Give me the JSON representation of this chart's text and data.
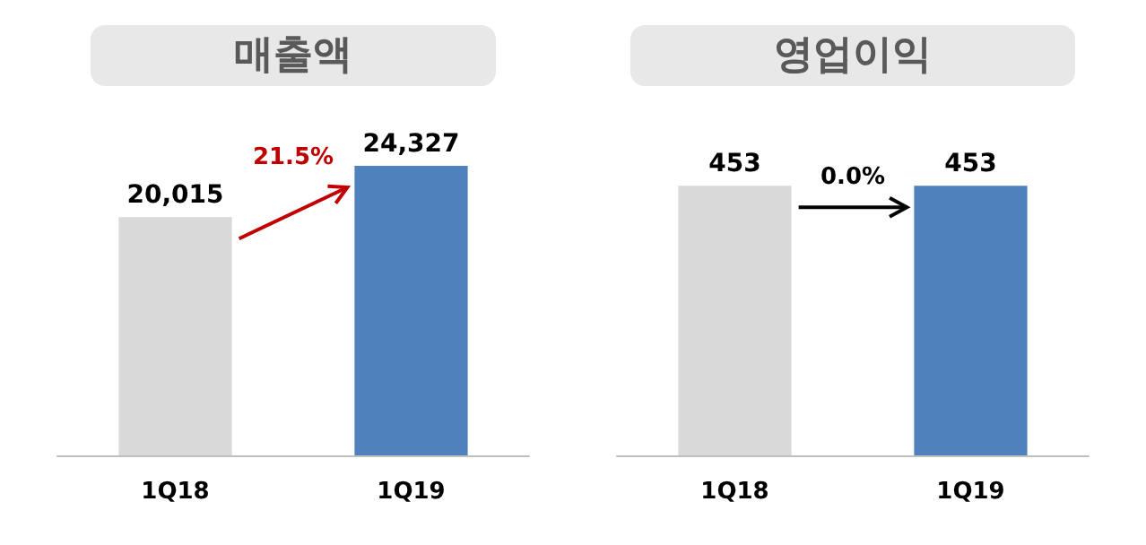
{
  "chart_data": [
    {
      "type": "bar",
      "title": "매출액",
      "categories": [
        "1Q18",
        "1Q19"
      ],
      "colors": [
        "#d9d9d9",
        "#4f81bd"
      ],
      "values": [
        20015,
        24327
      ],
      "value_labels": [
        "20,015",
        "24,327"
      ],
      "annotations": [
        "21.5%"
      ]
    },
    {
      "type": "bar",
      "title": "영업이익",
      "categories": [
        "1Q18",
        "1Q19"
      ],
      "colors": [
        "#d9d9d9",
        "#4f81bd"
      ],
      "values": [
        453,
        453
      ],
      "data_labels": true,
      "annotations": [
        "0.0%"
      ]
    }
  ]
}
